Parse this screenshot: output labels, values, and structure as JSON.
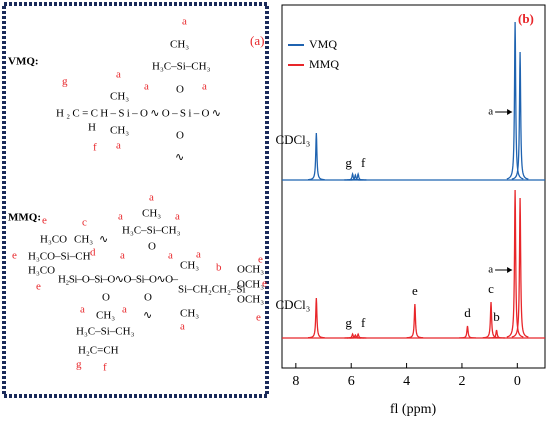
{
  "panel_a": {
    "label": "(a)",
    "vmq": {
      "title": "VMQ:",
      "atoms": [
        "CH₃",
        "H₃C–Si–CH₃",
        "O",
        "H₂C=CH–Si–O∿O–Si–O∿",
        "H",
        "CH₃",
        "CH₃",
        "O",
        "∿"
      ],
      "letters": [
        "a",
        "a",
        "a",
        "g",
        "a",
        "a",
        "f"
      ]
    },
    "mmq": {
      "title": "MMQ:",
      "atoms": [
        "CH₃",
        "H₃C–Si–CH₃",
        "O",
        "H₃CO",
        "CH₃",
        "H₃CO–Si–CH",
        "H₃CO",
        "H₂Si–O–Si–O∿O–Si–O∿O–",
        "CH₃",
        "Si–CH₂CH₂–Si",
        "OCH₃",
        "OCH₃",
        "OCH₃",
        "CH₃",
        "∿",
        "O",
        "O",
        "∿",
        "CH₃",
        "H₃C–Si–CH₃",
        "H₂C=CH"
      ],
      "letters": [
        "e",
        "c",
        "a",
        "a",
        "a",
        "d",
        "e",
        "e",
        "a",
        "a",
        "a",
        "b",
        "e",
        "e",
        "e",
        "a",
        "a",
        "a",
        "g",
        "f"
      ]
    }
  },
  "chart_data": {
    "type": "nmr",
    "label": "(b)",
    "x_label": "fl (ppm)",
    "xlim": [
      8.5,
      -1
    ],
    "xticks": [
      8,
      6,
      4,
      2,
      0
    ],
    "ylim": [
      0,
      170
    ],
    "series": [
      {
        "name": "VMQ",
        "color": "#1f63b0",
        "x": [
          7.26,
          5.95,
          5.85,
          5.75,
          0.08,
          -0.1
        ],
        "values": [
          47,
          6,
          5,
          6,
          158,
          128
        ],
        "peak_labels": [
          "CDCl₃",
          "g",
          null,
          "f",
          "a",
          null
        ]
      },
      {
        "name": "MMQ",
        "color": "#e8262a",
        "x": [
          7.26,
          5.95,
          5.85,
          5.75,
          3.7,
          1.8,
          0.95,
          0.75,
          0.08,
          -0.1
        ],
        "values": [
          40,
          4,
          3,
          4,
          34,
          12,
          36,
          8,
          148,
          140
        ],
        "peak_labels": [
          "CDCl₃",
          "g",
          null,
          "f",
          "e",
          "d",
          "c",
          "b",
          "a",
          null
        ]
      }
    ]
  }
}
